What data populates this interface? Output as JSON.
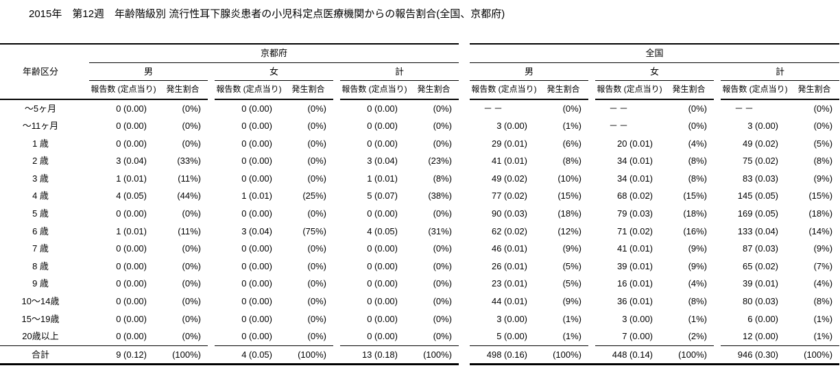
{
  "page": {
    "title": "2015年　第12週　年齢階級別 流行性耳下腺炎患者の小児科定点医療機関からの報告割合(全国、京都府)"
  },
  "colors": {
    "background": "#ffffff",
    "text": "#000000",
    "rule_lines": "#000000"
  },
  "table": {
    "age_col_header": "年齢区分",
    "regions": [
      "京都府",
      "全国"
    ],
    "sexes": [
      "男",
      "女",
      "計"
    ],
    "measure_headers": [
      "報告数 (定点当り)",
      "発生割合"
    ],
    "rows": [
      {
        "age": "～5ヶ月",
        "values": [
          "0 (0.00)",
          "(0%)",
          "0 (0.00)",
          "(0%)",
          "0 (0.00)",
          "(0%)",
          "－－",
          "(0%)",
          "－－",
          "(0%)",
          "－－",
          "(0%)"
        ]
      },
      {
        "age": "～11ヶ月",
        "values": [
          "0 (0.00)",
          "(0%)",
          "0 (0.00)",
          "(0%)",
          "0 (0.00)",
          "(0%)",
          "3 (0.00)",
          "(1%)",
          "－－",
          "(0%)",
          "3 (0.00)",
          "(0%)"
        ]
      },
      {
        "age": "1 歳",
        "values": [
          "0 (0.00)",
          "(0%)",
          "0 (0.00)",
          "(0%)",
          "0 (0.00)",
          "(0%)",
          "29 (0.01)",
          "(6%)",
          "20 (0.01)",
          "(4%)",
          "49 (0.02)",
          "(5%)"
        ]
      },
      {
        "age": "2 歳",
        "values": [
          "3 (0.04)",
          "(33%)",
          "0 (0.00)",
          "(0%)",
          "3 (0.04)",
          "(23%)",
          "41 (0.01)",
          "(8%)",
          "34 (0.01)",
          "(8%)",
          "75 (0.02)",
          "(8%)"
        ]
      },
      {
        "age": "3 歳",
        "values": [
          "1 (0.01)",
          "(11%)",
          "0 (0.00)",
          "(0%)",
          "1 (0.01)",
          "(8%)",
          "49 (0.02)",
          "(10%)",
          "34 (0.01)",
          "(8%)",
          "83 (0.03)",
          "(9%)"
        ]
      },
      {
        "age": "4 歳",
        "values": [
          "4 (0.05)",
          "(44%)",
          "1 (0.01)",
          "(25%)",
          "5 (0.07)",
          "(38%)",
          "77 (0.02)",
          "(15%)",
          "68 (0.02)",
          "(15%)",
          "145 (0.05)",
          "(15%)"
        ]
      },
      {
        "age": "5 歳",
        "values": [
          "0 (0.00)",
          "(0%)",
          "0 (0.00)",
          "(0%)",
          "0 (0.00)",
          "(0%)",
          "90 (0.03)",
          "(18%)",
          "79 (0.03)",
          "(18%)",
          "169 (0.05)",
          "(18%)"
        ]
      },
      {
        "age": "6 歳",
        "values": [
          "1 (0.01)",
          "(11%)",
          "3 (0.04)",
          "(75%)",
          "4 (0.05)",
          "(31%)",
          "62 (0.02)",
          "(12%)",
          "71 (0.02)",
          "(16%)",
          "133 (0.04)",
          "(14%)"
        ]
      },
      {
        "age": "7 歳",
        "values": [
          "0 (0.00)",
          "(0%)",
          "0 (0.00)",
          "(0%)",
          "0 (0.00)",
          "(0%)",
          "46 (0.01)",
          "(9%)",
          "41 (0.01)",
          "(9%)",
          "87 (0.03)",
          "(9%)"
        ]
      },
      {
        "age": "8 歳",
        "values": [
          "0 (0.00)",
          "(0%)",
          "0 (0.00)",
          "(0%)",
          "0 (0.00)",
          "(0%)",
          "26 (0.01)",
          "(5%)",
          "39 (0.01)",
          "(9%)",
          "65 (0.02)",
          "(7%)"
        ]
      },
      {
        "age": "9 歳",
        "values": [
          "0 (0.00)",
          "(0%)",
          "0 (0.00)",
          "(0%)",
          "0 (0.00)",
          "(0%)",
          "23 (0.01)",
          "(5%)",
          "16 (0.01)",
          "(4%)",
          "39 (0.01)",
          "(4%)"
        ]
      },
      {
        "age": "10～14歳",
        "values": [
          "0 (0.00)",
          "(0%)",
          "0 (0.00)",
          "(0%)",
          "0 (0.00)",
          "(0%)",
          "44 (0.01)",
          "(9%)",
          "36 (0.01)",
          "(8%)",
          "80 (0.03)",
          "(8%)"
        ]
      },
      {
        "age": "15～19歳",
        "values": [
          "0 (0.00)",
          "(0%)",
          "0 (0.00)",
          "(0%)",
          "0 (0.00)",
          "(0%)",
          "3 (0.00)",
          "(1%)",
          "3 (0.00)",
          "(1%)",
          "6 (0.00)",
          "(1%)"
        ]
      },
      {
        "age": "20歳以上",
        "values": [
          "0 (0.00)",
          "(0%)",
          "0 (0.00)",
          "(0%)",
          "0 (0.00)",
          "(0%)",
          "5 (0.00)",
          "(1%)",
          "7 (0.00)",
          "(2%)",
          "12 (0.00)",
          "(1%)"
        ]
      }
    ],
    "total": {
      "age": "合計",
      "values": [
        "9 (0.12)",
        "(100%)",
        "4 (0.05)",
        "(100%)",
        "13 (0.18)",
        "(100%)",
        "498 (0.16)",
        "(100%)",
        "448 (0.14)",
        "(100%)",
        "946 (0.30)",
        "(100%)"
      ]
    }
  }
}
